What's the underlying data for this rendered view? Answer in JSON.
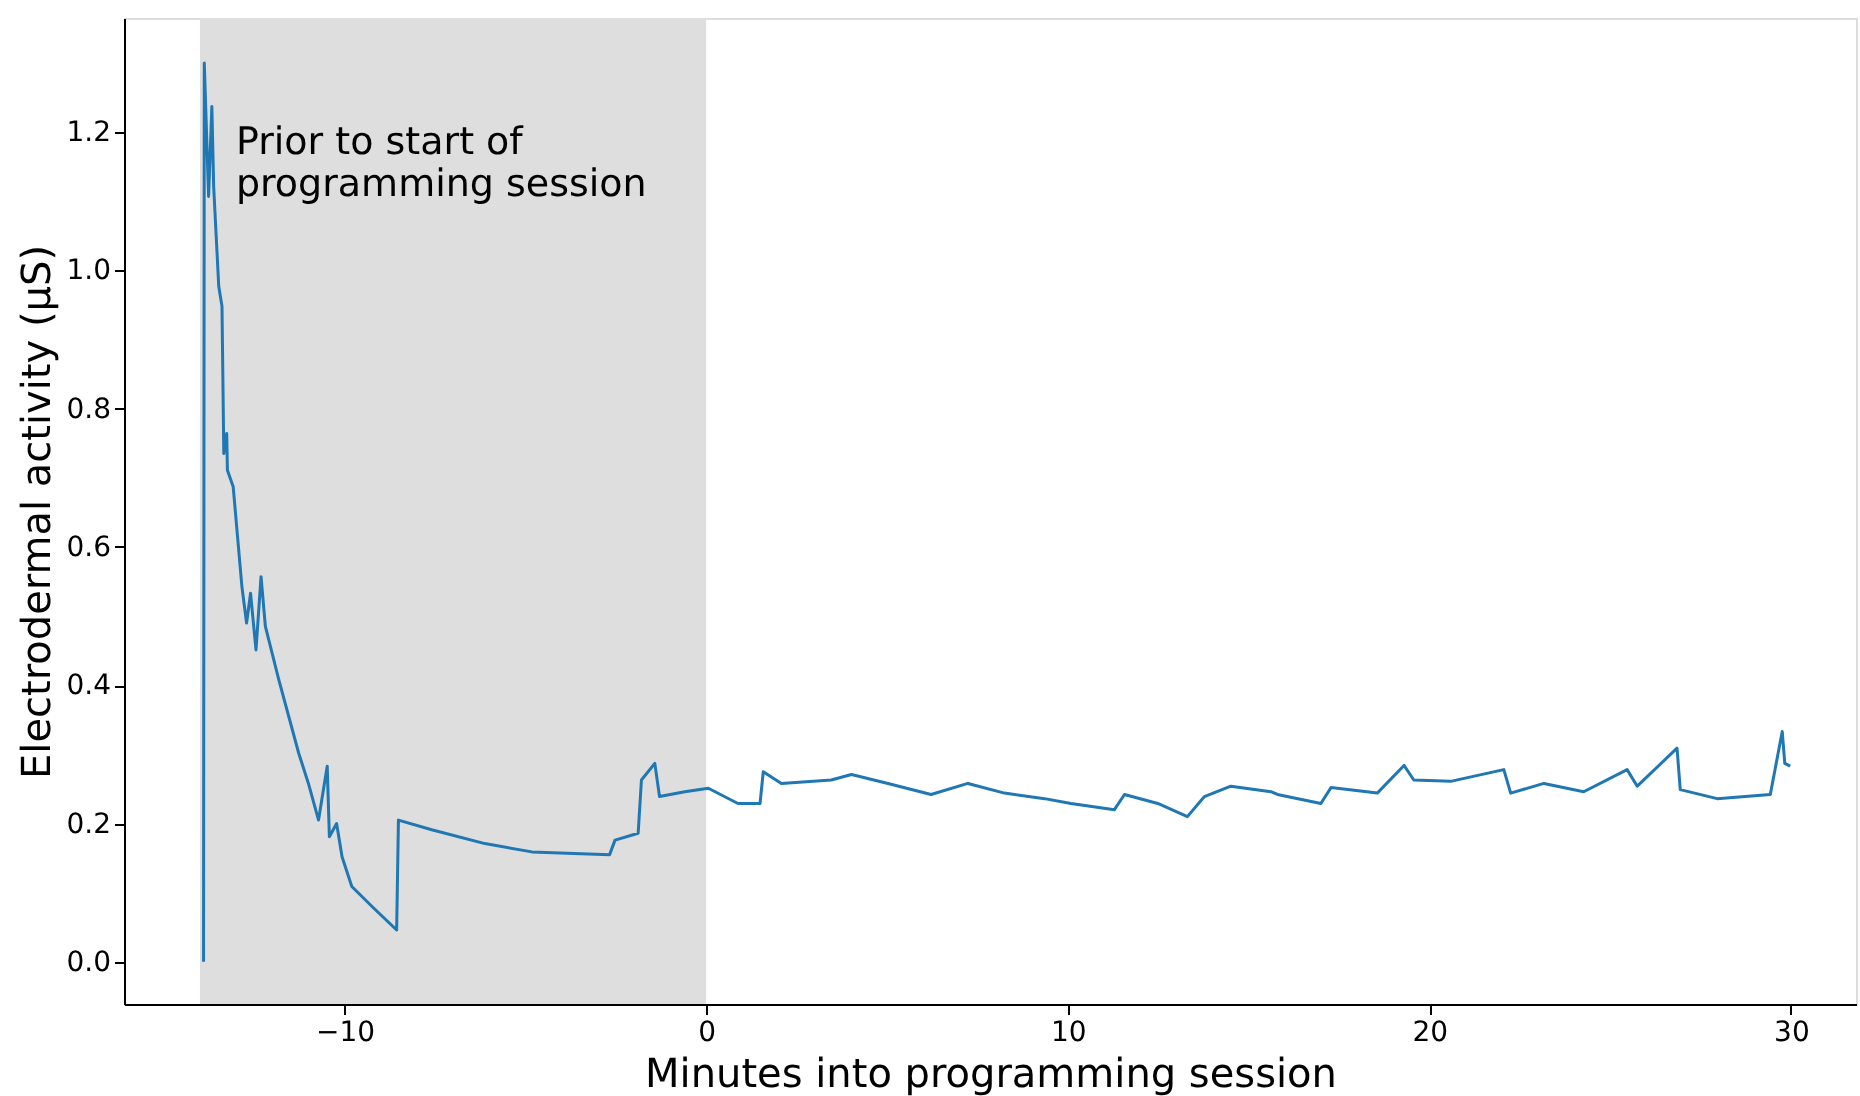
{
  "chart_data": {
    "type": "line",
    "xlabel": "Minutes into programming session",
    "ylabel": "Electrodermal activity (µS)",
    "xlim": [
      -16.1,
      31.8
    ],
    "ylim": [
      -0.061,
      1.365
    ],
    "xticks": [
      -10,
      0,
      10,
      20,
      30
    ],
    "yticks": [
      {
        "value": 0,
        "label": "0.0"
      },
      {
        "value": 0.2,
        "label": "0.2"
      },
      {
        "value": 0.4,
        "label": "0.4"
      },
      {
        "value": 0.6,
        "label": "0.6"
      },
      {
        "value": 0.8,
        "label": "0.8"
      },
      {
        "value": 1.0,
        "label": "1.0"
      },
      {
        "value": 1.2,
        "label": "1.2"
      }
    ],
    "line_style": "solid",
    "marker": "none",
    "bands": [
      {
        "axis": "x",
        "from": -14,
        "to": 0,
        "label": "Prior to start of\n programming session",
        "color": "#dedede"
      }
    ],
    "series": [
      {
        "color": "#1f77b4",
        "x": [
          -13.9,
          -13.88,
          -13.79,
          -13.76,
          -13.67,
          -13.62,
          -13.48,
          -13.39,
          -13.34,
          -13.26,
          -13.24,
          -13.08,
          -12.84,
          -12.71,
          -12.6,
          -12.45,
          -12.31,
          -12.19,
          -11.82,
          -11.27,
          -11.0,
          -10.72,
          -10.48,
          -10.42,
          -10.22,
          -10.07,
          -9.8,
          -9.24,
          -8.56,
          -8.51,
          -7.59,
          -6.12,
          -4.82,
          -2.67,
          -2.52,
          -1.88,
          -1.79,
          -1.42,
          -1.29,
          -0.59,
          0.06,
          0.88,
          1.49,
          1.58,
          2.08,
          3.46,
          4.02,
          5.03,
          6.22,
          7.24,
          8.25,
          9.36,
          10.09,
          11.29,
          11.57,
          12.49,
          13.31,
          13.78,
          14.51,
          15.62,
          15.8,
          17.0,
          17.28,
          18.56,
          19.3,
          19.57,
          20.59,
          22.06,
          22.25,
          23.17,
          24.27,
          25.47,
          25.75,
          26.85,
          26.94,
          27.96,
          29.43,
          29.76,
          29.83,
          29.98
        ],
        "values": [
          0.0,
          1.3,
          1.155,
          1.107,
          1.237,
          1.121,
          0.977,
          0.948,
          0.735,
          0.764,
          0.711,
          0.687,
          0.543,
          0.49,
          0.533,
          0.451,
          0.557,
          0.485,
          0.408,
          0.302,
          0.258,
          0.205,
          0.283,
          0.181,
          0.2,
          0.152,
          0.109,
          0.08,
          0.046,
          0.205,
          0.191,
          0.171,
          0.159,
          0.155,
          0.176,
          0.186,
          0.263,
          0.287,
          0.239,
          0.246,
          0.251,
          0.229,
          0.229,
          0.275,
          0.258,
          0.263,
          0.271,
          0.258,
          0.242,
          0.258,
          0.244,
          0.236,
          0.229,
          0.22,
          0.242,
          0.229,
          0.21,
          0.239,
          0.254,
          0.246,
          0.242,
          0.229,
          0.252,
          0.244,
          0.284,
          0.263,
          0.261,
          0.278,
          0.244,
          0.258,
          0.246,
          0.278,
          0.254,
          0.309,
          0.249,
          0.236,
          0.242,
          0.333,
          0.287,
          0.283
        ]
      }
    ]
  }
}
